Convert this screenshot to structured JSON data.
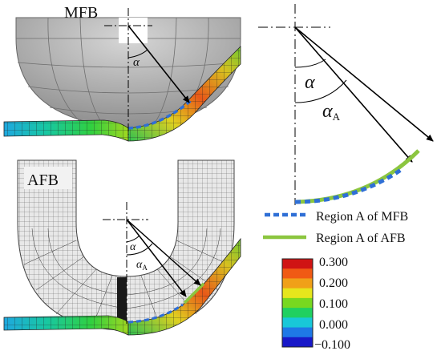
{
  "panels": {
    "mfb": {
      "label": "MFB",
      "angle_symbol": "α"
    },
    "afb": {
      "label": "AFB",
      "angle_symbol": "α",
      "angle_a_symbol": "α",
      "angle_a_subscript": "A"
    },
    "schematic": {
      "angle_symbol": "α",
      "angle_a_symbol": "α",
      "angle_a_subscript": "A"
    }
  },
  "legend": {
    "items": [
      {
        "label": "Region A of MFB",
        "style": "dashed",
        "color": "#2f6fd6"
      },
      {
        "label": "Region A of AFB",
        "style": "solid",
        "color": "#8cc63f"
      }
    ]
  },
  "colorbar": {
    "ticks": [
      "0.300",
      "0.200",
      "0.100",
      "0.000",
      "−0.100"
    ],
    "colors": [
      "#1818c8",
      "#1e78e6",
      "#18c8d8",
      "#20d060",
      "#78d820",
      "#e6e61c",
      "#f0a018",
      "#f05a14",
      "#d01414"
    ]
  }
}
